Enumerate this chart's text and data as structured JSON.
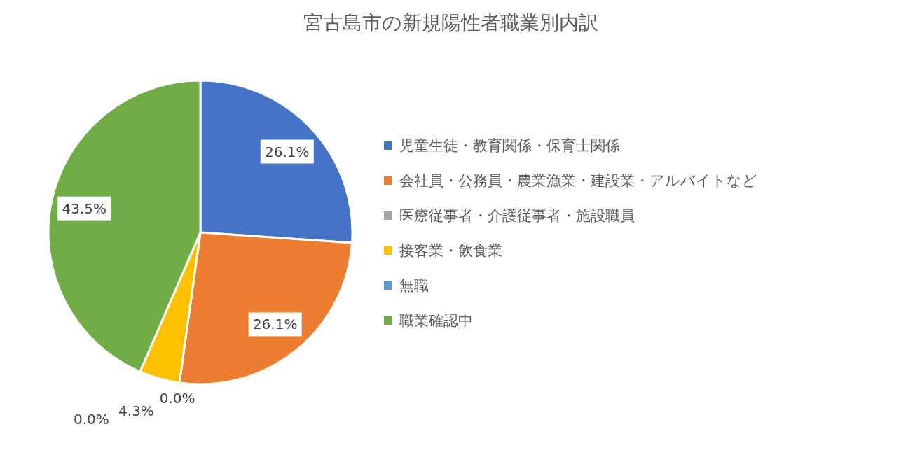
{
  "chart_data": {
    "type": "pie",
    "title": "宮古島市の新規陽性者職業別内訳",
    "categories": [
      "児童生徒・教育関係・保育士関係",
      "会社員・公務員・農業漁業・建設業・アルバイトなど",
      "医療従事者・介護従事者・施設職員",
      "接客業・飲食業",
      "無職",
      "職業確認中"
    ],
    "values": [
      26.1,
      26.1,
      0.0,
      4.3,
      0.0,
      43.5
    ],
    "colors": [
      "#4472c4",
      "#ed7d31",
      "#a5a5a5",
      "#ffc000",
      "#5b9bd5",
      "#70ad47"
    ],
    "value_labels": [
      "26.1%",
      "26.1%",
      "0.0%",
      "4.3%",
      "0.0%",
      "43.5%"
    ],
    "legend": "right"
  }
}
